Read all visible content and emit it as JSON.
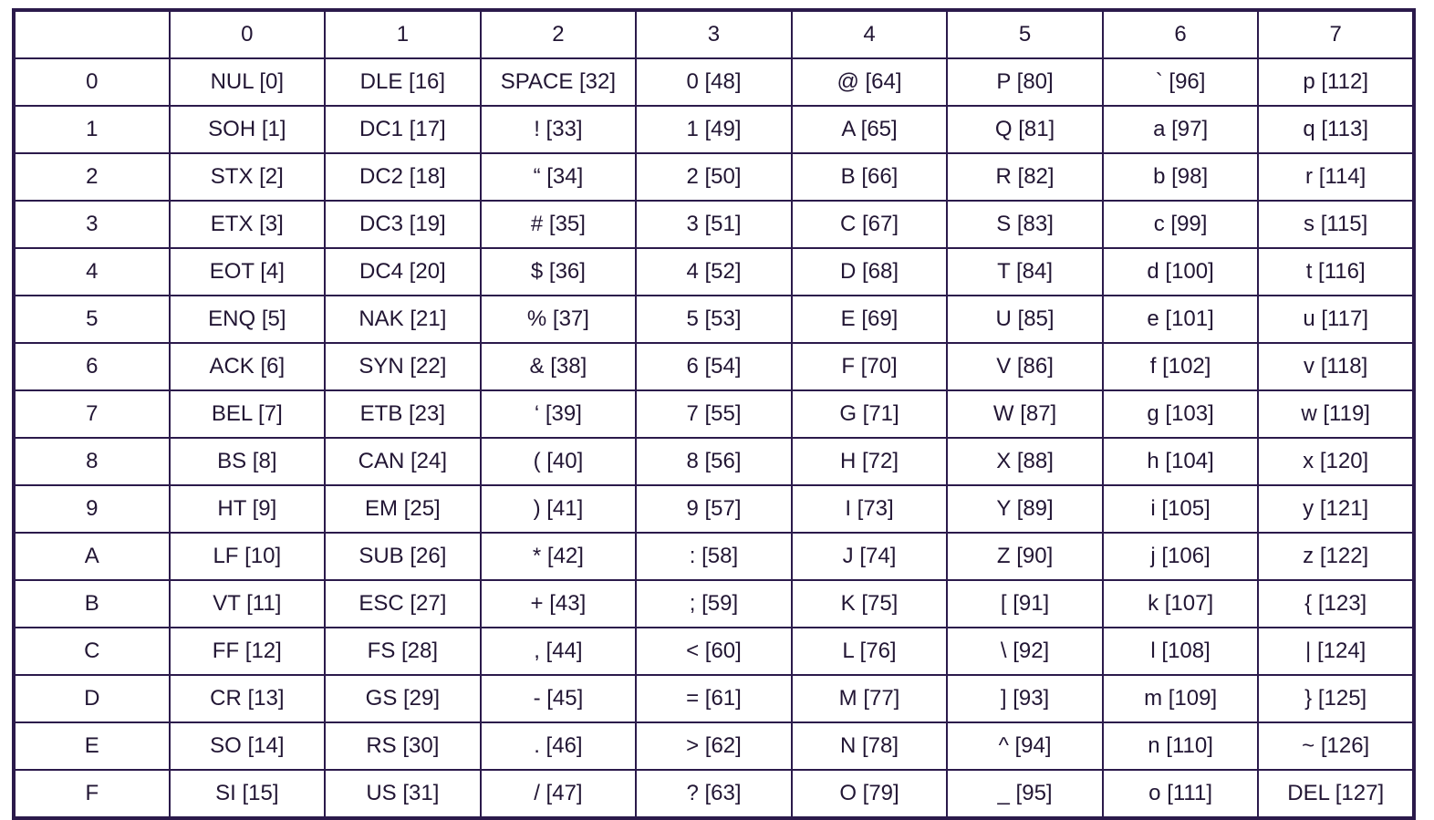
{
  "table": {
    "corner": "",
    "columns": [
      "0",
      "1",
      "2",
      "3",
      "4",
      "5",
      "6",
      "7"
    ],
    "rows": [
      {
        "label": "0",
        "cells": [
          "NUL [0]",
          "DLE [16]",
          "SPACE [32]",
          "0 [48]",
          "@ [64]",
          "P [80]",
          "` [96]",
          "p [112]"
        ]
      },
      {
        "label": "1",
        "cells": [
          "SOH [1]",
          "DC1 [17]",
          "! [33]",
          "1 [49]",
          "A [65]",
          "Q [81]",
          "a [97]",
          "q [113]"
        ]
      },
      {
        "label": "2",
        "cells": [
          "STX [2]",
          "DC2 [18]",
          "“ [34]",
          "2 [50]",
          "B [66]",
          "R [82]",
          "b [98]",
          "r [114]"
        ]
      },
      {
        "label": "3",
        "cells": [
          "ETX [3]",
          "DC3 [19]",
          "# [35]",
          "3 [51]",
          "C [67]",
          "S [83]",
          "c [99]",
          "s [115]"
        ]
      },
      {
        "label": "4",
        "cells": [
          "EOT [4]",
          "DC4 [20]",
          "$ [36]",
          "4 [52]",
          "D [68]",
          "T [84]",
          "d [100]",
          "t [116]"
        ]
      },
      {
        "label": "5",
        "cells": [
          "ENQ [5]",
          "NAK [21]",
          "% [37]",
          "5 [53]",
          "E [69]",
          "U [85]",
          "e [101]",
          "u [117]"
        ]
      },
      {
        "label": "6",
        "cells": [
          "ACK [6]",
          "SYN [22]",
          "& [38]",
          "6 [54]",
          "F [70]",
          "V [86]",
          "f [102]",
          "v [118]"
        ]
      },
      {
        "label": "7",
        "cells": [
          "BEL [7]",
          "ETB [23]",
          "‘ [39]",
          "7 [55]",
          "G [71]",
          "W [87]",
          "g [103]",
          "w [119]"
        ]
      },
      {
        "label": "8",
        "cells": [
          "BS [8]",
          "CAN [24]",
          "( [40]",
          "8 [56]",
          "H [72]",
          "X [88]",
          "h [104]",
          "x [120]"
        ]
      },
      {
        "label": "9",
        "cells": [
          "HT [9]",
          "EM [25]",
          ") [41]",
          "9 [57]",
          "I [73]",
          "Y [89]",
          "i [105]",
          "y [121]"
        ]
      },
      {
        "label": "A",
        "cells": [
          "LF [10]",
          "SUB [26]",
          "* [42]",
          ": [58]",
          "J [74]",
          "Z [90]",
          "j [106]",
          "z [122]"
        ]
      },
      {
        "label": "B",
        "cells": [
          "VT [11]",
          "ESC [27]",
          "+ [43]",
          "; [59]",
          "K [75]",
          "[ [91]",
          "k [107]",
          "{ [123]"
        ]
      },
      {
        "label": "C",
        "cells": [
          "FF [12]",
          "FS [28]",
          ", [44]",
          "< [60]",
          "L [76]",
          "\\ [92]",
          "l [108]",
          "| [124]"
        ]
      },
      {
        "label": "D",
        "cells": [
          "CR [13]",
          "GS [29]",
          "- [45]",
          "= [61]",
          "M [77]",
          "] [93]",
          "m [109]",
          "} [125]"
        ]
      },
      {
        "label": "E",
        "cells": [
          "SO [14]",
          "RS [30]",
          ". [46]",
          "> [62]",
          "N [78]",
          "^ [94]",
          "n [110]",
          "~ [126]"
        ]
      },
      {
        "label": "F",
        "cells": [
          "SI [15]",
          "US [31]",
          "/ [47]",
          "? [63]",
          "O [79]",
          "_ [95]",
          "o [111]",
          "DEL [127]"
        ]
      }
    ]
  },
  "colors": {
    "border": "#2b1a4b",
    "text": "#221634",
    "background": "#ffffff"
  }
}
